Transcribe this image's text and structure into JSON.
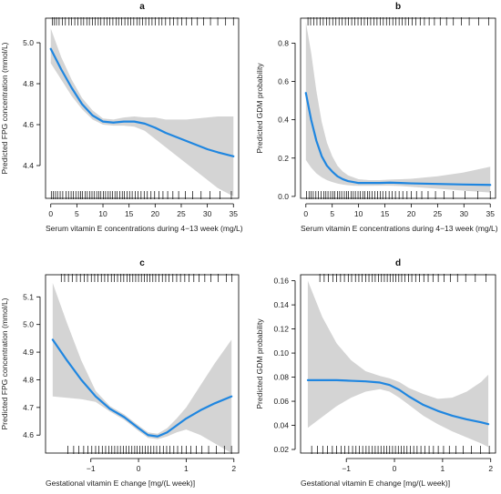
{
  "chart_data": [
    {
      "id": "a",
      "type": "line",
      "panel_label": "a",
      "xlabel": "Serum vitamin E concentrations during 4−13 week (mg/L)",
      "ylabel": "Predicted FPG concentration (mmol/L)",
      "xlim": [
        -1,
        36
      ],
      "ylim": [
        4.24,
        5.12
      ],
      "xticks": [
        0,
        5,
        10,
        15,
        20,
        25,
        30,
        35
      ],
      "yticks": [
        4.4,
        4.6,
        4.8,
        5.0
      ],
      "ytick_labels": [
        "4.4",
        "4.6",
        "4.8",
        "5.0"
      ],
      "series": [
        {
          "x": [
            0,
            2,
            4,
            6,
            8,
            10,
            12,
            14,
            16,
            18,
            20,
            22,
            24,
            26,
            28,
            30,
            32,
            35
          ],
          "y": [
            4.97,
            4.87,
            4.78,
            4.7,
            4.645,
            4.615,
            4.61,
            4.615,
            4.615,
            4.605,
            4.585,
            4.56,
            4.54,
            4.52,
            4.5,
            4.48,
            4.465,
            4.445
          ],
          "lower": [
            4.9,
            4.82,
            4.74,
            4.675,
            4.625,
            4.6,
            4.595,
            4.595,
            4.59,
            4.57,
            4.53,
            4.49,
            4.45,
            4.41,
            4.37,
            4.33,
            4.29,
            4.25
          ],
          "upper": [
            5.07,
            4.93,
            4.82,
            4.73,
            4.67,
            4.63,
            4.625,
            4.635,
            4.64,
            4.635,
            4.635,
            4.625,
            4.625,
            4.625,
            4.63,
            4.635,
            4.64,
            4.64
          ]
        }
      ],
      "rug_top": [
        0.3,
        0.7,
        1.1,
        1.6,
        2.2,
        2.8,
        3.5,
        4.0,
        4.6,
        5.2,
        5.8,
        6.3,
        6.9,
        7.4,
        8.0,
        8.5,
        9.1,
        9.6,
        10.2,
        10.8,
        11.3,
        11.9,
        12.5,
        13.0,
        13.6,
        14.2,
        14.8,
        15.3,
        15.9,
        16.5,
        17.0,
        17.6,
        18.2,
        18.8,
        19.4,
        20.0,
        20.7,
        21.3,
        22.0,
        22.8,
        23.5,
        24.3,
        25.1,
        26.0,
        27.0,
        28.1,
        29.3,
        30.6,
        32.0,
        33.5,
        35.0
      ],
      "rug_bottom": [
        0.1,
        0.5,
        0.9,
        1.3,
        1.8,
        2.3,
        2.9,
        3.4,
        3.9,
        4.3,
        4.8,
        5.3,
        5.7,
        6.1,
        6.6,
        7.0,
        7.5,
        7.9,
        8.3,
        8.8,
        9.2,
        9.6,
        10.1,
        10.5,
        11.0,
        11.4,
        11.8,
        12.3,
        12.7,
        13.2,
        13.7,
        14.1,
        14.6,
        15.1,
        15.6,
        16.2,
        16.7,
        17.3,
        17.9,
        18.5,
        19.2,
        19.9,
        20.7,
        21.5,
        22.4,
        23.4,
        24.5,
        25.8,
        27.2,
        28.8,
        30.5,
        32.4,
        34.6
      ]
    },
    {
      "id": "b",
      "type": "line",
      "panel_label": "b",
      "xlabel": "Serum vitamin E concentrations during 4−13 week (mg/L)",
      "ylabel": "Predicted GDM probability",
      "xlim": [
        -1,
        36
      ],
      "ylim": [
        -0.01,
        0.93
      ],
      "xticks": [
        0,
        5,
        10,
        15,
        20,
        25,
        30,
        35
      ],
      "yticks": [
        0.0,
        0.2,
        0.4,
        0.6,
        0.8
      ],
      "ytick_labels": [
        "0.0",
        "0.2",
        "0.4",
        "0.6",
        "0.8"
      ],
      "series": [
        {
          "x": [
            0,
            1,
            2,
            3,
            4,
            5,
            6,
            7,
            8,
            9,
            10,
            12,
            14,
            16,
            18,
            20,
            25,
            30,
            35
          ],
          "y": [
            0.54,
            0.4,
            0.29,
            0.21,
            0.16,
            0.13,
            0.105,
            0.09,
            0.08,
            0.075,
            0.07,
            0.07,
            0.07,
            0.072,
            0.07,
            0.068,
            0.065,
            0.062,
            0.06
          ],
          "lower": [
            0.19,
            0.15,
            0.12,
            0.1,
            0.085,
            0.075,
            0.067,
            0.062,
            0.058,
            0.056,
            0.055,
            0.055,
            0.056,
            0.056,
            0.054,
            0.05,
            0.04,
            0.03,
            0.02
          ],
          "upper": [
            0.91,
            0.75,
            0.55,
            0.39,
            0.28,
            0.21,
            0.16,
            0.13,
            0.11,
            0.1,
            0.09,
            0.085,
            0.085,
            0.088,
            0.09,
            0.092,
            0.105,
            0.125,
            0.155
          ]
        }
      ],
      "rug_top": [
        0.4,
        0.9,
        1.5,
        2.1,
        2.7,
        3.3,
        3.9,
        4.5,
        5.1,
        5.7,
        6.3,
        6.9,
        7.5,
        8.1,
        8.7,
        9.3,
        9.9,
        10.5,
        11.1,
        11.7,
        12.3,
        12.9,
        13.5,
        14.1,
        14.7,
        15.3,
        15.9,
        16.5,
        17.1,
        17.7,
        18.3,
        18.9,
        19.5,
        20.2,
        20.9,
        21.7,
        22.5,
        23.4,
        24.4,
        25.5,
        26.7,
        28.0,
        29.5,
        31.0,
        32.8,
        34.7
      ],
      "rug_bottom": [
        0.1,
        0.6,
        1.0,
        1.4,
        1.9,
        2.4,
        2.9,
        3.4,
        3.8,
        4.2,
        4.7,
        5.1,
        5.5,
        6.0,
        6.4,
        6.8,
        7.3,
        7.7,
        8.1,
        8.6,
        9.0,
        9.4,
        9.9,
        10.3,
        10.8,
        11.2,
        11.7,
        12.1,
        12.6,
        13.1,
        13.6,
        14.1,
        14.6,
        15.2,
        15.8,
        16.4,
        17.0,
        17.7,
        18.4,
        19.2,
        20.0,
        21.0,
        22.0,
        23.2,
        24.6,
        26.2,
        28.0,
        30.2,
        32.6,
        35.0
      ]
    },
    {
      "id": "c",
      "type": "line",
      "panel_label": "c",
      "xlabel": "Gestational vitamin E change [mg/(L week)]",
      "ylabel": "Predicted FPG concentration (mmol/L)",
      "xlim": [
        -1.95,
        2.1
      ],
      "ylim": [
        4.535,
        5.18
      ],
      "xticks": [
        -1,
        0,
        1,
        2
      ],
      "xtick_labels": [
        "−1",
        "0",
        "1",
        "2"
      ],
      "yticks": [
        4.6,
        4.7,
        4.8,
        4.9,
        5.0,
        5.1
      ],
      "ytick_labels": [
        "4.6",
        "4.7",
        "4.8",
        "4.9",
        "5.0",
        "5.1"
      ],
      "series": [
        {
          "x": [
            -1.8,
            -1.5,
            -1.2,
            -0.9,
            -0.6,
            -0.3,
            0.0,
            0.2,
            0.4,
            0.6,
            0.8,
            1.0,
            1.3,
            1.6,
            1.95
          ],
          "y": [
            4.945,
            4.87,
            4.8,
            4.74,
            4.695,
            4.665,
            4.625,
            4.6,
            4.595,
            4.61,
            4.635,
            4.66,
            4.69,
            4.715,
            4.74
          ],
          "lower": [
            4.74,
            4.735,
            4.73,
            4.72,
            4.685,
            4.655,
            4.615,
            4.59,
            4.585,
            4.595,
            4.61,
            4.62,
            4.6,
            4.57,
            4.535
          ],
          "upper": [
            5.15,
            5.005,
            4.87,
            4.76,
            4.705,
            4.675,
            4.635,
            4.61,
            4.605,
            4.625,
            4.66,
            4.7,
            4.78,
            4.86,
            4.945
          ]
        }
      ],
      "rug_top": [
        -1.62,
        -1.55,
        -1.47,
        -1.39,
        -1.3,
        -1.22,
        -1.14,
        -1.07,
        -0.99,
        -0.92,
        -0.85,
        -0.78,
        -0.71,
        -0.64,
        -0.57,
        -0.51,
        -0.44,
        -0.37,
        -0.31,
        -0.24,
        -0.18,
        -0.12,
        -0.06,
        0.0,
        0.06,
        0.12,
        0.18,
        0.24,
        0.3,
        0.36,
        0.43,
        0.5,
        0.57,
        0.64,
        0.72,
        0.8,
        0.88,
        0.97,
        1.06,
        1.16,
        1.27,
        1.39,
        1.52,
        1.67,
        1.84,
        1.96
      ],
      "rug_bottom": [
        -1.48,
        -1.36,
        -1.25,
        -1.15,
        -1.06,
        -0.98,
        -0.9,
        -0.83,
        -0.76,
        -0.69,
        -0.62,
        -0.56,
        -0.5,
        -0.44,
        -0.38,
        -0.32,
        -0.26,
        -0.2,
        -0.14,
        -0.08,
        -0.03,
        0.03,
        0.08,
        0.14,
        0.2,
        0.26,
        0.32,
        0.38,
        0.45,
        0.52,
        0.59,
        0.66,
        0.74,
        0.82,
        0.91,
        1.0,
        1.1,
        1.21,
        1.33,
        1.47,
        1.63,
        1.8,
        1.95
      ]
    },
    {
      "id": "d",
      "type": "line",
      "panel_label": "d",
      "xlabel": "Gestational vitamin E change [mg/(L week)]",
      "ylabel": "Predicted GDM probability",
      "xlim": [
        -1.95,
        2.1
      ],
      "ylim": [
        0.017,
        0.165
      ],
      "xticks": [
        -1,
        0,
        1,
        2
      ],
      "xtick_labels": [
        "−1",
        "0",
        "1",
        "2"
      ],
      "yticks": [
        0.02,
        0.04,
        0.06,
        0.08,
        0.1,
        0.12,
        0.14,
        0.16
      ],
      "ytick_labels": [
        "0.02",
        "0.04",
        "0.06",
        "0.08",
        "0.10",
        "0.12",
        "0.14",
        "0.16"
      ],
      "series": [
        {
          "x": [
            -1.8,
            -1.5,
            -1.2,
            -0.9,
            -0.6,
            -0.3,
            -0.1,
            0.1,
            0.3,
            0.6,
            0.9,
            1.2,
            1.5,
            1.8,
            1.95
          ],
          "y": [
            0.0775,
            0.0775,
            0.0775,
            0.077,
            0.0765,
            0.0755,
            0.0735,
            0.0695,
            0.064,
            0.057,
            0.052,
            0.048,
            0.045,
            0.0425,
            0.041
          ],
          "lower": [
            0.038,
            0.047,
            0.056,
            0.063,
            0.068,
            0.07,
            0.068,
            0.063,
            0.057,
            0.048,
            0.041,
            0.035,
            0.03,
            0.025,
            0.022
          ],
          "upper": [
            0.16,
            0.13,
            0.108,
            0.094,
            0.085,
            0.081,
            0.079,
            0.076,
            0.071,
            0.066,
            0.062,
            0.063,
            0.068,
            0.076,
            0.082
          ]
        }
      ],
      "rug_top": [
        -1.55,
        -1.46,
        -1.37,
        -1.28,
        -1.2,
        -1.12,
        -1.04,
        -0.96,
        -0.89,
        -0.81,
        -0.74,
        -0.67,
        -0.6,
        -0.53,
        -0.46,
        -0.4,
        -0.33,
        -0.27,
        -0.21,
        -0.15,
        -0.09,
        -0.03,
        0.03,
        0.09,
        0.15,
        0.22,
        0.29,
        0.36,
        0.44,
        0.52,
        0.61,
        0.7,
        0.8,
        0.91,
        1.03,
        1.16,
        1.31,
        1.48,
        1.68,
        1.9
      ],
      "rug_bottom": [
        -1.72,
        -1.6,
        -1.49,
        -1.39,
        -1.29,
        -1.2,
        -1.11,
        -1.03,
        -0.95,
        -0.87,
        -0.8,
        -0.73,
        -0.66,
        -0.59,
        -0.53,
        -0.46,
        -0.4,
        -0.34,
        -0.28,
        -0.22,
        -0.16,
        -0.1,
        -0.04,
        0.02,
        0.08,
        0.14,
        0.2,
        0.26,
        0.33,
        0.4,
        0.47,
        0.55,
        0.63,
        0.72,
        0.81,
        0.91,
        1.02,
        1.14,
        1.28,
        1.43,
        1.6,
        1.79,
        1.97
      ]
    }
  ],
  "style": {
    "fit_color": "#1f86e0",
    "band_color": "#d4d4d4",
    "rug_color": "#000000"
  }
}
